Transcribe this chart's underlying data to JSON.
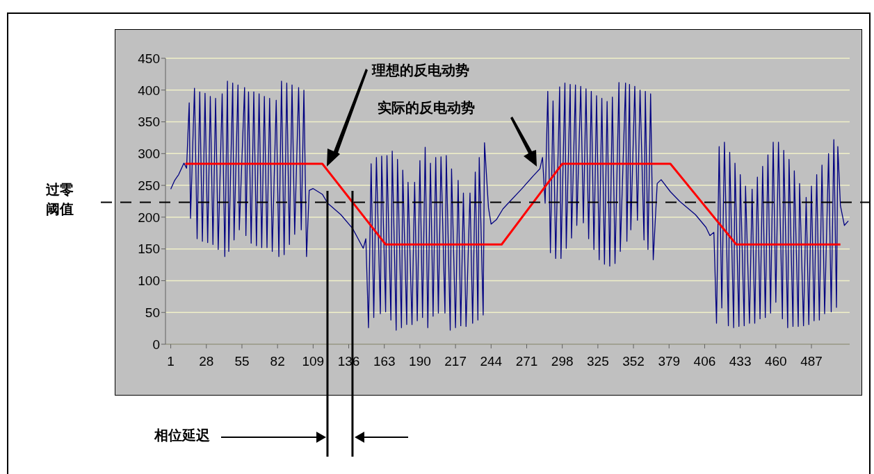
{
  "chart_data": {
    "type": "line",
    "xlim": [
      -3,
      516
    ],
    "xticks": [
      1,
      28,
      55,
      82,
      109,
      136,
      163,
      190,
      217,
      244,
      271,
      298,
      325,
      352,
      379,
      406,
      433,
      460,
      487
    ],
    "ylim": [
      0,
      450
    ],
    "yticks": [
      0,
      50,
      100,
      150,
      200,
      250,
      300,
      350,
      400,
      450
    ],
    "grid": "y",
    "marker": "none",
    "line_style": "solid",
    "series": [
      {
        "color": "#000080",
        "x": [
          1,
          4,
          7,
          11,
          13,
          15,
          16,
          19,
          21,
          23,
          25,
          27,
          29,
          31,
          33,
          35,
          37,
          40,
          42,
          44,
          45,
          48,
          49,
          52,
          53,
          57,
          58,
          60,
          62,
          64,
          66,
          68,
          70,
          72,
          74,
          76,
          78,
          81,
          83,
          85,
          87,
          89,
          91,
          93,
          95,
          98,
          100,
          102,
          104,
          106,
          109,
          116,
          120,
          130,
          139,
          147,
          149,
          151,
          153,
          155,
          157,
          160,
          161,
          164,
          165,
          168,
          169,
          172,
          173,
          176,
          177,
          180,
          181,
          184,
          186,
          188,
          190,
          192,
          194,
          196,
          198,
          200,
          202,
          204,
          206,
          209,
          210,
          213,
          214,
          217,
          219,
          221,
          223,
          225,
          228,
          230,
          232,
          234,
          235,
          238,
          239,
          242,
          244,
          248,
          253,
          257,
          267,
          276,
          281,
          283,
          285,
          287,
          289,
          291,
          293,
          296,
          297,
          300,
          301,
          304,
          305,
          308,
          309,
          312,
          314,
          316,
          318,
          320,
          322,
          324,
          326,
          328,
          330,
          332,
          334,
          336,
          338,
          341,
          342,
          346,
          347,
          349,
          350,
          353,
          355,
          357,
          360,
          361,
          363,
          365,
          367,
          370,
          373,
          380,
          387,
          399,
          407,
          410,
          413,
          415,
          417,
          419,
          421,
          424,
          425,
          428,
          429,
          432,
          433,
          436,
          437,
          440,
          442,
          444,
          446,
          448,
          450,
          452,
          454,
          456,
          458,
          460,
          462,
          465,
          466,
          469,
          470,
          473,
          474,
          477,
          478,
          481,
          483,
          485,
          487,
          489,
          491,
          493,
          495,
          497,
          500,
          502,
          504,
          506,
          507,
          509,
          512,
          515
        ],
        "values": [
          244,
          258,
          267,
          285,
          277,
          380,
          198,
          403,
          166,
          397,
          162,
          395,
          160,
          390,
          157,
          387,
          149,
          394,
          138,
          414,
          146,
          411,
          164,
          408,
          180,
          404,
          171,
          397,
          159,
          397,
          155,
          394,
          152,
          390,
          152,
          387,
          146,
          384,
          138,
          414,
          141,
          411,
          157,
          408,
          173,
          404,
          180,
          400,
          138,
          242,
          245,
          236,
          222,
          204,
          182,
          151,
          166,
          26,
          284,
          42,
          294,
          48,
          296,
          51,
          297,
          38,
          304,
          22,
          291,
          26,
          274,
          31,
          255,
          31,
          255,
          37,
          289,
          42,
          310,
          26,
          285,
          44,
          294,
          49,
          295,
          49,
          297,
          22,
          276,
          26,
          258,
          29,
          238,
          28,
          238,
          33,
          271,
          38,
          294,
          46,
          317,
          215,
          189,
          196,
          213,
          222,
          244,
          265,
          276,
          294,
          222,
          398,
          144,
          383,
          135,
          405,
          135,
          411,
          151,
          409,
          167,
          408,
          187,
          406,
          191,
          402,
          166,
          398,
          149,
          391,
          133,
          387,
          126,
          382,
          123,
          389,
          127,
          412,
          146,
          411,
          162,
          409,
          180,
          406,
          195,
          400,
          164,
          398,
          149,
          394,
          133,
          253,
          259,
          240,
          225,
          204,
          184,
          171,
          176,
          33,
          311,
          57,
          318,
          29,
          302,
          26,
          285,
          28,
          267,
          29,
          249,
          33,
          244,
          33,
          263,
          40,
          280,
          42,
          298,
          49,
          318,
          66,
          318,
          40,
          305,
          26,
          291,
          28,
          273,
          28,
          253,
          29,
          231,
          31,
          249,
          37,
          267,
          38,
          282,
          48,
          300,
          51,
          322,
          58,
          311,
          218,
          187,
          194
        ]
      },
      {
        "color": "#ff0000",
        "x": [
          12,
          116,
          164,
          252,
          298,
          380,
          430,
          509
        ],
        "values": [
          284,
          284,
          157,
          157,
          284,
          284,
          157,
          157
        ]
      }
    ],
    "ref_lines": [
      {
        "axis": "y",
        "value": 224,
        "label": "过零阈值",
        "color": "#000000",
        "line_style": "dashed"
      },
      {
        "axis": "x",
        "value": 120,
        "color": "#000000",
        "line_style": "solid"
      },
      {
        "axis": "x",
        "value": 139,
        "color": "#000000",
        "line_style": "solid"
      }
    ],
    "annotations": [
      "理想的反电动势",
      "实际的反电动势",
      "相位延迟"
    ]
  }
}
